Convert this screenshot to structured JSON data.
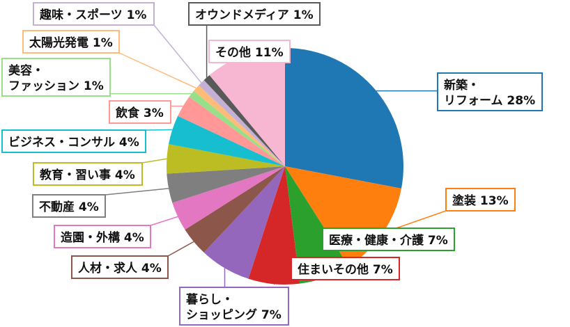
{
  "chart_data": {
    "type": "pie",
    "title": "",
    "start": "12 o'clock",
    "direction": "clockwise",
    "slices": [
      {
        "label": "新築・\nリフォーム",
        "value": 28,
        "pct_label": "28%",
        "color": "#1f77b4"
      },
      {
        "label": "塗装",
        "value": 13,
        "pct_label": "13%",
        "color": "#ff7f0e"
      },
      {
        "label": "医療・健康・介護",
        "value": 7,
        "pct_label": "7%",
        "color": "#2ca02c"
      },
      {
        "label": "住まいその他",
        "value": 7,
        "pct_label": "7%",
        "color": "#d62728"
      },
      {
        "label": "暮らし・\nショッピング",
        "value": 7,
        "pct_label": "7%",
        "color": "#9467bd"
      },
      {
        "label": "人材・求人",
        "value": 4,
        "pct_label": "4%",
        "color": "#8c564b"
      },
      {
        "label": "造園・外構",
        "value": 4,
        "pct_label": "4%",
        "color": "#e377c2"
      },
      {
        "label": "不動産",
        "value": 4,
        "pct_label": "4%",
        "color": "#7f7f7f"
      },
      {
        "label": "教育・習い事",
        "value": 4,
        "pct_label": "4%",
        "color": "#bcbd22"
      },
      {
        "label": "ビジネス・コンサル",
        "value": 4,
        "pct_label": "4%",
        "color": "#17becf"
      },
      {
        "label": "飲食",
        "value": 3,
        "pct_label": "3%",
        "color": "#ff9896"
      },
      {
        "label": "美容・\nファッション",
        "value": 1,
        "pct_label": "1%",
        "color": "#98df8a"
      },
      {
        "label": "太陽光発電",
        "value": 1,
        "pct_label": "1%",
        "color": "#ffbb78"
      },
      {
        "label": "趣味・スポーツ",
        "value": 1,
        "pct_label": "1%",
        "color": "#c5b0d5"
      },
      {
        "label": "オウンドメディア",
        "value": 1,
        "pct_label": "1%",
        "color": "#595959"
      },
      {
        "label": "その他",
        "value": 11,
        "pct_label": "11%",
        "color": "#f7b6d2"
      }
    ]
  }
}
